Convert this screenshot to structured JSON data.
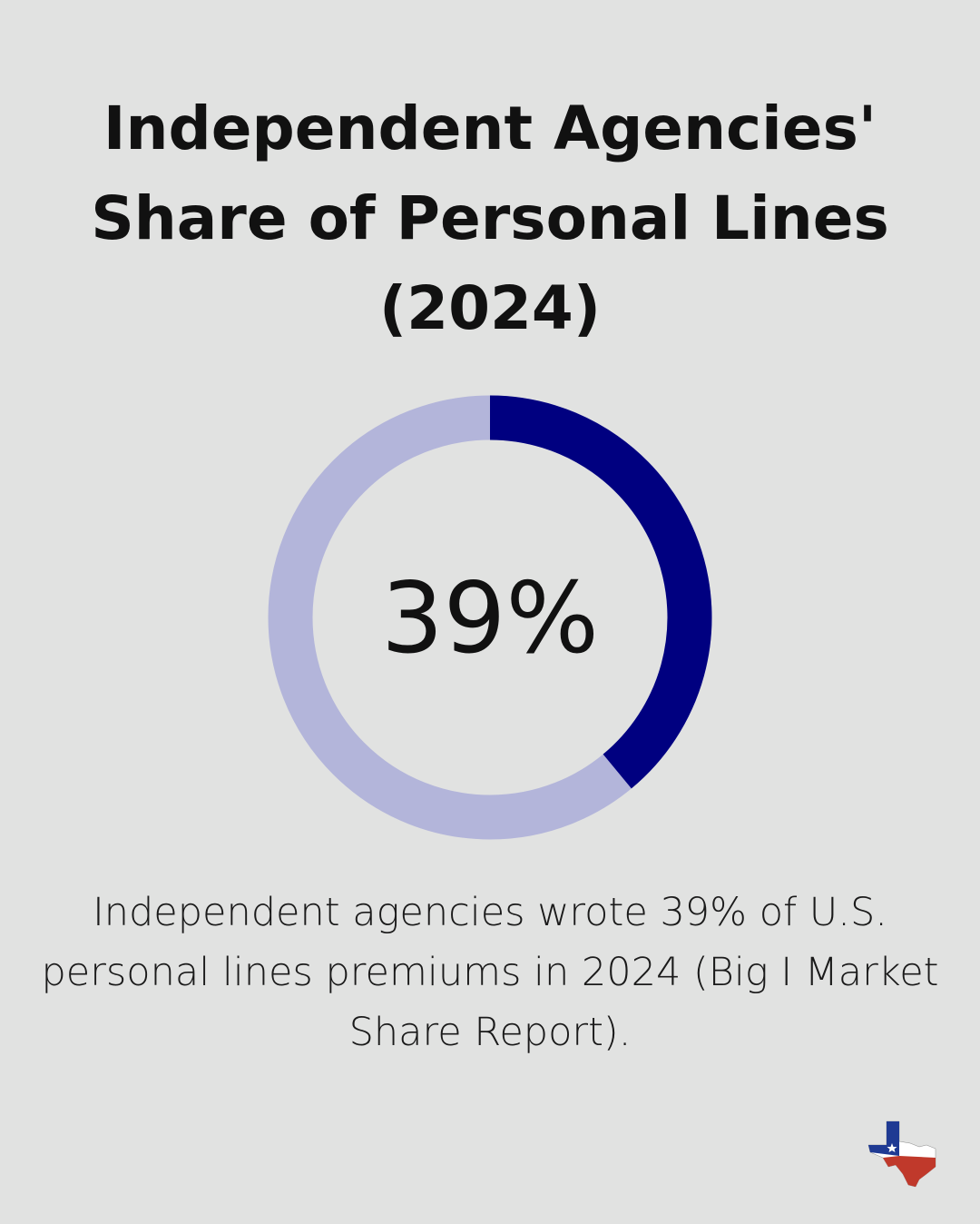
{
  "chart_data": {
    "type": "donut",
    "title": "Independent Agencies' Share of Personal Lines (2024)",
    "values": [
      39
    ],
    "value_labels": [
      "39%"
    ],
    "color": "#000080",
    "track_color": "#b3b5da",
    "caption": "Independent agencies wrote 39% of U.S. personal lines premiums in 2024 (Big I Market Share Report)."
  }
}
